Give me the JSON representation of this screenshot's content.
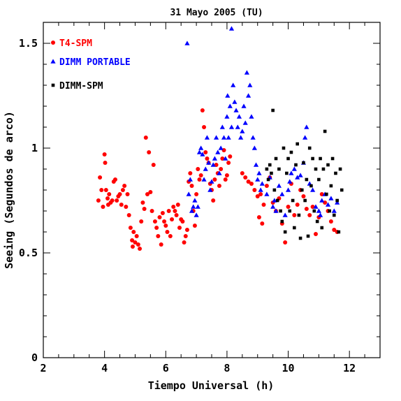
{
  "chart_data": {
    "type": "scatter",
    "title": "31 Mayo 2005 (TU)",
    "xlabel": "Tiempo Universal (h)",
    "ylabel": "Seeing (Segundos de arco)",
    "xlim": [
      2,
      13
    ],
    "ylim": [
      0,
      1.6
    ],
    "xticks": [
      2,
      4,
      6,
      8,
      10,
      12
    ],
    "yticks": [
      0,
      0.5,
      1,
      1.5
    ],
    "ytick_labels": [
      "0",
      "0.5",
      "1",
      "1.5"
    ],
    "legend_position": "top-left",
    "series": [
      {
        "name": "T4-SPM",
        "color": "#ff0000",
        "marker": "circle",
        "points": [
          [
            3.8,
            0.75
          ],
          [
            3.85,
            0.86
          ],
          [
            3.9,
            0.8
          ],
          [
            3.95,
            0.72
          ],
          [
            4.0,
            0.97
          ],
          [
            4.02,
            0.93
          ],
          [
            4.05,
            0.8
          ],
          [
            4.1,
            0.76
          ],
          [
            4.12,
            0.73
          ],
          [
            4.15,
            0.78
          ],
          [
            4.2,
            0.74
          ],
          [
            4.25,
            0.75
          ],
          [
            4.3,
            0.84
          ],
          [
            4.35,
            0.85
          ],
          [
            4.4,
            0.75
          ],
          [
            4.45,
            0.77
          ],
          [
            4.5,
            0.78
          ],
          [
            4.55,
            0.73
          ],
          [
            4.6,
            0.8
          ],
          [
            4.65,
            0.82
          ],
          [
            4.7,
            0.72
          ],
          [
            4.75,
            0.78
          ],
          [
            4.8,
            0.68
          ],
          [
            4.85,
            0.62
          ],
          [
            4.9,
            0.56
          ],
          [
            4.92,
            0.53
          ],
          [
            4.95,
            0.6
          ],
          [
            5.0,
            0.55
          ],
          [
            5.05,
            0.58
          ],
          [
            5.1,
            0.54
          ],
          [
            5.15,
            0.52
          ],
          [
            5.2,
            0.65
          ],
          [
            5.25,
            0.74
          ],
          [
            5.3,
            0.71
          ],
          [
            5.35,
            1.05
          ],
          [
            5.4,
            0.78
          ],
          [
            5.45,
            0.98
          ],
          [
            5.5,
            0.79
          ],
          [
            5.55,
            0.7
          ],
          [
            5.6,
            0.92
          ],
          [
            5.65,
            0.65
          ],
          [
            5.7,
            0.62
          ],
          [
            5.75,
            0.58
          ],
          [
            5.8,
            0.67
          ],
          [
            5.85,
            0.54
          ],
          [
            5.9,
            0.69
          ],
          [
            5.95,
            0.65
          ],
          [
            6.0,
            0.63
          ],
          [
            6.05,
            0.6
          ],
          [
            6.1,
            0.7
          ],
          [
            6.15,
            0.58
          ],
          [
            6.2,
            0.66
          ],
          [
            6.25,
            0.72
          ],
          [
            6.3,
            0.7
          ],
          [
            6.35,
            0.68
          ],
          [
            6.4,
            0.73
          ],
          [
            6.45,
            0.62
          ],
          [
            6.5,
            0.66
          ],
          [
            6.55,
            0.65
          ],
          [
            6.6,
            0.55
          ],
          [
            6.65,
            0.58
          ],
          [
            6.7,
            0.61
          ],
          [
            6.75,
            0.84
          ],
          [
            6.8,
            0.88
          ],
          [
            6.85,
            0.82
          ],
          [
            6.9,
            0.7
          ],
          [
            6.95,
            0.63
          ],
          [
            7.0,
            0.78
          ],
          [
            7.05,
            0.9
          ],
          [
            7.1,
            0.85
          ],
          [
            7.15,
            0.87
          ],
          [
            7.2,
            1.18
          ],
          [
            7.25,
            1.1
          ],
          [
            7.3,
            0.98
          ],
          [
            7.35,
            0.95
          ],
          [
            7.4,
            0.93
          ],
          [
            7.45,
            0.83
          ],
          [
            7.5,
            0.8
          ],
          [
            7.55,
            0.75
          ],
          [
            7.6,
            0.85
          ],
          [
            7.65,
            0.92
          ],
          [
            7.7,
            0.88
          ],
          [
            7.75,
            0.82
          ],
          [
            7.8,
            0.9
          ],
          [
            7.85,
            0.95
          ],
          [
            7.9,
            0.99
          ],
          [
            7.95,
            0.85
          ],
          [
            8.0,
            0.87
          ],
          [
            8.05,
            0.93
          ],
          [
            8.1,
            0.96
          ],
          [
            8.5,
            0.88
          ],
          [
            8.6,
            0.86
          ],
          [
            8.7,
            0.84
          ],
          [
            8.8,
            0.83
          ],
          [
            8.9,
            0.8
          ],
          [
            9.0,
            0.77
          ],
          [
            9.05,
            0.67
          ],
          [
            9.1,
            0.78
          ],
          [
            9.15,
            0.64
          ],
          [
            9.2,
            0.73
          ],
          [
            9.3,
            0.82
          ],
          [
            9.4,
            0.86
          ],
          [
            9.5,
            0.74
          ],
          [
            9.6,
            0.7
          ],
          [
            9.7,
            0.76
          ],
          [
            9.8,
            0.64
          ],
          [
            9.9,
            0.55
          ],
          [
            10.0,
            0.72
          ],
          [
            10.1,
            0.83
          ],
          [
            10.2,
            0.68
          ],
          [
            10.3,
            0.73
          ],
          [
            10.4,
            0.8
          ],
          [
            10.5,
            0.77
          ],
          [
            10.6,
            0.71
          ],
          [
            10.7,
            0.68
          ],
          [
            10.8,
            0.72
          ],
          [
            10.9,
            0.59
          ],
          [
            11.0,
            0.67
          ],
          [
            11.1,
            0.78
          ],
          [
            11.2,
            0.74
          ],
          [
            11.3,
            0.7
          ],
          [
            11.4,
            0.65
          ],
          [
            11.5,
            0.61
          ],
          [
            11.6,
            0.6
          ]
        ]
      },
      {
        "name": "DIMM PORTABLE",
        "color": "#0000ff",
        "marker": "triangle",
        "points": [
          [
            6.7,
            1.5
          ],
          [
            6.75,
            0.78
          ],
          [
            6.8,
            0.85
          ],
          [
            6.85,
            0.7
          ],
          [
            6.9,
            0.72
          ],
          [
            6.95,
            0.75
          ],
          [
            7.0,
            0.68
          ],
          [
            7.05,
            0.72
          ],
          [
            7.1,
            0.98
          ],
          [
            7.15,
            1.0
          ],
          [
            7.2,
            0.97
          ],
          [
            7.25,
            0.85
          ],
          [
            7.3,
            0.9
          ],
          [
            7.35,
            1.05
          ],
          [
            7.4,
            0.93
          ],
          [
            7.45,
            0.8
          ],
          [
            7.5,
            0.84
          ],
          [
            7.55,
            0.92
          ],
          [
            7.6,
            0.95
          ],
          [
            7.65,
            1.05
          ],
          [
            7.7,
            0.98
          ],
          [
            7.75,
            0.88
          ],
          [
            7.8,
            1.0
          ],
          [
            7.85,
            1.1
          ],
          [
            7.9,
            1.05
          ],
          [
            7.95,
            0.95
          ],
          [
            8.0,
            1.15
          ],
          [
            8.02,
            1.25
          ],
          [
            8.05,
            1.05
          ],
          [
            8.1,
            1.2
          ],
          [
            8.15,
            1.1
          ],
          [
            8.2,
            1.3
          ],
          [
            8.25,
            1.22
          ],
          [
            8.3,
            1.18
          ],
          [
            8.35,
            1.1
          ],
          [
            8.4,
            1.15
          ],
          [
            8.45,
            1.05
          ],
          [
            8.5,
            1.08
          ],
          [
            8.55,
            1.2
          ],
          [
            8.6,
            1.12
          ],
          [
            8.65,
            1.36
          ],
          [
            8.7,
            1.25
          ],
          [
            8.75,
            1.3
          ],
          [
            8.8,
            1.15
          ],
          [
            8.85,
            1.05
          ],
          [
            8.9,
            1.0
          ],
          [
            8.95,
            0.92
          ],
          [
            9.0,
            0.85
          ],
          [
            9.05,
            0.88
          ],
          [
            9.1,
            0.8
          ],
          [
            9.15,
            0.83
          ],
          [
            8.15,
            1.57
          ],
          [
            9.3,
            0.78
          ],
          [
            9.4,
            0.86
          ],
          [
            9.5,
            0.72
          ],
          [
            9.55,
            0.75
          ],
          [
            9.6,
            0.7
          ],
          [
            9.7,
            0.82
          ],
          [
            9.8,
            0.78
          ],
          [
            9.9,
            0.68
          ],
          [
            10.0,
            0.8
          ],
          [
            10.05,
            0.84
          ],
          [
            10.1,
            0.88
          ],
          [
            10.2,
            0.9
          ],
          [
            10.3,
            0.86
          ],
          [
            10.4,
            0.87
          ],
          [
            10.5,
            0.93
          ],
          [
            10.55,
            1.05
          ],
          [
            10.6,
            1.1
          ],
          [
            10.7,
            0.83
          ],
          [
            10.8,
            0.8
          ],
          [
            10.9,
            0.72
          ],
          [
            11.0,
            0.7
          ],
          [
            11.05,
            0.68
          ],
          [
            11.1,
            0.75
          ],
          [
            11.2,
            0.78
          ],
          [
            11.3,
            0.73
          ],
          [
            11.4,
            0.76
          ],
          [
            11.5,
            0.7
          ],
          [
            11.6,
            0.74
          ]
        ]
      },
      {
        "name": "DIMM-SPM",
        "color": "#000000",
        "marker": "square",
        "points": [
          [
            9.3,
            0.9
          ],
          [
            9.35,
            0.85
          ],
          [
            9.4,
            0.92
          ],
          [
            9.45,
            0.88
          ],
          [
            9.5,
            1.18
          ],
          [
            9.55,
            0.8
          ],
          [
            9.6,
            0.95
          ],
          [
            9.65,
            0.75
          ],
          [
            9.7,
            0.9
          ],
          [
            9.75,
            0.7
          ],
          [
            9.8,
            0.65
          ],
          [
            9.85,
            1.0
          ],
          [
            9.9,
            0.6
          ],
          [
            9.95,
            0.88
          ],
          [
            10.0,
            0.95
          ],
          [
            10.05,
            0.7
          ],
          [
            10.1,
            0.98
          ],
          [
            10.15,
            0.75
          ],
          [
            10.2,
            0.62
          ],
          [
            10.25,
            0.92
          ],
          [
            10.3,
            1.02
          ],
          [
            10.35,
            0.68
          ],
          [
            10.4,
            0.57
          ],
          [
            10.45,
            0.8
          ],
          [
            10.5,
            0.93
          ],
          [
            10.55,
            0.75
          ],
          [
            10.6,
            0.85
          ],
          [
            10.65,
            0.58
          ],
          [
            10.7,
            1.0
          ],
          [
            10.75,
            0.82
          ],
          [
            10.8,
            0.95
          ],
          [
            10.85,
            0.7
          ],
          [
            10.9,
            0.9
          ],
          [
            10.95,
            0.65
          ],
          [
            11.0,
            0.85
          ],
          [
            11.05,
            0.95
          ],
          [
            11.1,
            0.62
          ],
          [
            11.15,
            0.9
          ],
          [
            11.2,
            1.08
          ],
          [
            11.25,
            0.78
          ],
          [
            11.3,
            0.92
          ],
          [
            11.35,
            0.7
          ],
          [
            11.4,
            0.82
          ],
          [
            11.45,
            0.95
          ],
          [
            11.5,
            0.68
          ],
          [
            11.55,
            0.88
          ],
          [
            11.6,
            0.75
          ],
          [
            11.65,
            0.6
          ],
          [
            11.7,
            0.9
          ],
          [
            11.75,
            0.8
          ]
        ]
      }
    ]
  }
}
